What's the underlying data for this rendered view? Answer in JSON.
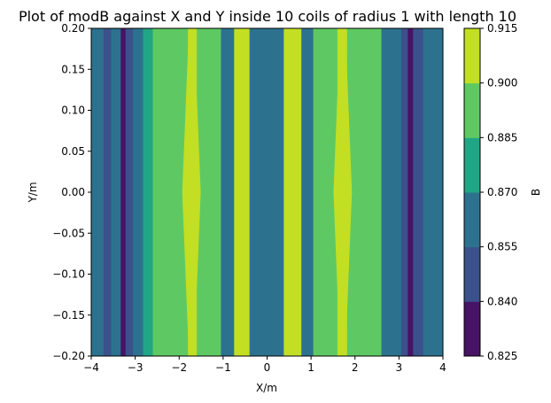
{
  "chart_data": {
    "type": "heatmap",
    "subtype": "filled-contour",
    "title": "Plot of modB against X and Y inside 10 coils of radius 1 with length 10",
    "xlabel": "X/m",
    "ylabel": "Y/m",
    "xlim": [
      -4,
      4
    ],
    "ylim": [
      -0.2,
      0.2
    ],
    "x_ticks": [
      "−4",
      "−3",
      "−2",
      "−1",
      "0",
      "1",
      "2",
      "3",
      "4"
    ],
    "y_ticks": [
      "−0.20",
      "−0.15",
      "−0.10",
      "−0.05",
      "0.00",
      "0.05",
      "0.10",
      "0.15",
      "0.20"
    ],
    "colorbar": {
      "label": "B",
      "levels": [
        0.825,
        0.84,
        0.855,
        0.87,
        0.885,
        0.9,
        0.915
      ],
      "tick_labels": [
        "0.825",
        "0.840",
        "0.855",
        "0.870",
        "0.885",
        "0.900",
        "0.915"
      ],
      "colors": [
        "#471365",
        "#3b518b",
        "#2c728e",
        "#21a685",
        "#5ec962",
        "#c2df23"
      ]
    },
    "bands_center": {
      "x_edges": [
        -4.0,
        -3.72,
        -3.55,
        -3.33,
        -3.22,
        -3.05,
        -2.82,
        -2.6,
        -2.25,
        -1.8,
        -1.6,
        -1.05,
        -0.75,
        -0.6,
        -0.4,
        0.38,
        0.62,
        0.78,
        1.05,
        1.6,
        1.82,
        2.2,
        2.6,
        2.83,
        3.05,
        3.2,
        3.32,
        3.55,
        3.75,
        4.0
      ],
      "levels": [
        2,
        1,
        2,
        0,
        1,
        2,
        3,
        4,
        4,
        5,
        4,
        2,
        5,
        5,
        2,
        5,
        5,
        2,
        4,
        5,
        4,
        4,
        2,
        2,
        1,
        0,
        1,
        2,
        2
      ]
    },
    "peaks_wedge": [
      {
        "x": -1.72,
        "width_at_edge": 0.12,
        "width_at_center": 0.42,
        "level": 5
      },
      {
        "x": 1.72,
        "width_at_edge": 0.12,
        "width_at_center": 0.42,
        "level": 5
      }
    ]
  }
}
